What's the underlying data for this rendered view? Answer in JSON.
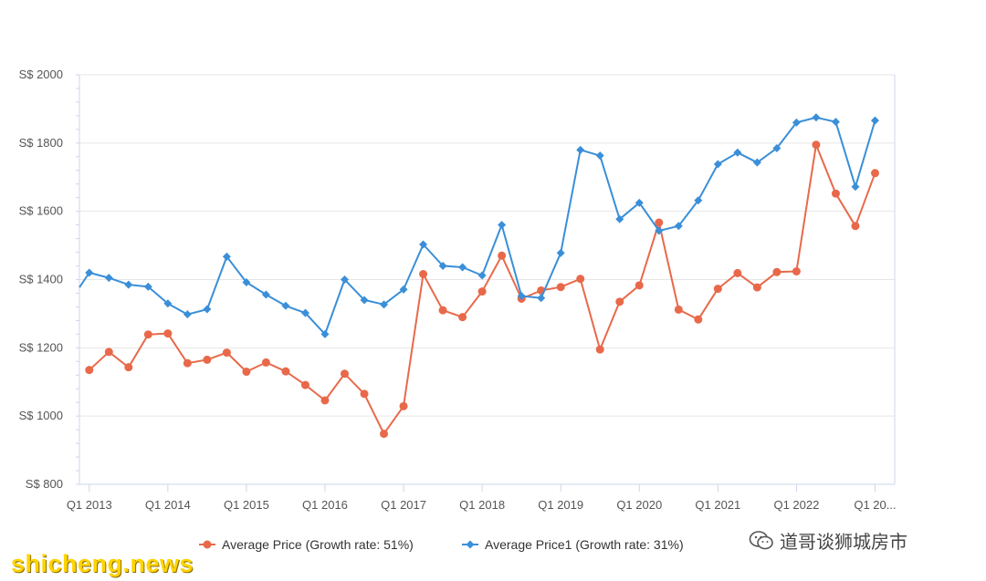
{
  "colors": {
    "series1": "#e8694a",
    "series2": "#3a8fd8",
    "grid": "#e6e6e6",
    "axis": "#ccd6eb"
  },
  "chart_data": {
    "type": "line",
    "title": "",
    "xlabel": "",
    "ylabel": "",
    "ylim": [
      800,
      2000
    ],
    "yticks": [
      800,
      1000,
      1200,
      1400,
      1600,
      1800,
      2000
    ],
    "ytick_labels": [
      "S$ 800",
      "S$ 1000",
      "S$ 1200",
      "S$ 1400",
      "S$ 1600",
      "S$ 1800",
      "S$ 2000"
    ],
    "xtick_labels": [
      "Q1 2013",
      "Q1 2014",
      "Q1 2015",
      "Q1 2016",
      "Q1 2017",
      "Q1 2018",
      "Q1 2019",
      "Q1 2020",
      "Q1 2021",
      "Q1 2022",
      "Q1 20..."
    ],
    "xticks_index": [
      0,
      4,
      8,
      12,
      16,
      20,
      24,
      28,
      32,
      36,
      40
    ],
    "x_start_offset": -0.5,
    "grid": true,
    "legend": "bottom-center",
    "series": [
      {
        "name": "Average Price (Growth rate: 51%)",
        "marker": "circle",
        "values": [
          1135,
          1188,
          1143,
          1239,
          1242,
          1155,
          1165,
          1186,
          1130,
          1157,
          1131,
          1091,
          1046,
          1124,
          1065,
          948,
          1029,
          1416,
          1310,
          1290,
          1365,
          1470,
          1344,
          1368,
          1378,
          1402,
          1195,
          1335,
          1383,
          1567,
          1312,
          1283,
          1373,
          1419,
          1377,
          1422,
          1424,
          1795,
          1652,
          1557,
          1712
        ]
      },
      {
        "name": "Average Price1 (Growth rate: 31%)",
        "marker": "diamond",
        "start_value": 1377,
        "values": [
          1420,
          1405,
          1385,
          1379,
          1330,
          1298,
          1313,
          1467,
          1392,
          1356,
          1323,
          1302,
          1240,
          1400,
          1340,
          1327,
          1371,
          1503,
          1440,
          1436,
          1412,
          1560,
          1352,
          1346,
          1478,
          1780,
          1763,
          1577,
          1625,
          1543,
          1557,
          1632,
          1738,
          1772,
          1743,
          1785,
          1860,
          1875,
          1862,
          1672,
          1866
        ]
      }
    ]
  },
  "watermarks": {
    "left": "shicheng.news",
    "right": "道哥谈狮城房市",
    "right_icon": "wechat-icon"
  }
}
